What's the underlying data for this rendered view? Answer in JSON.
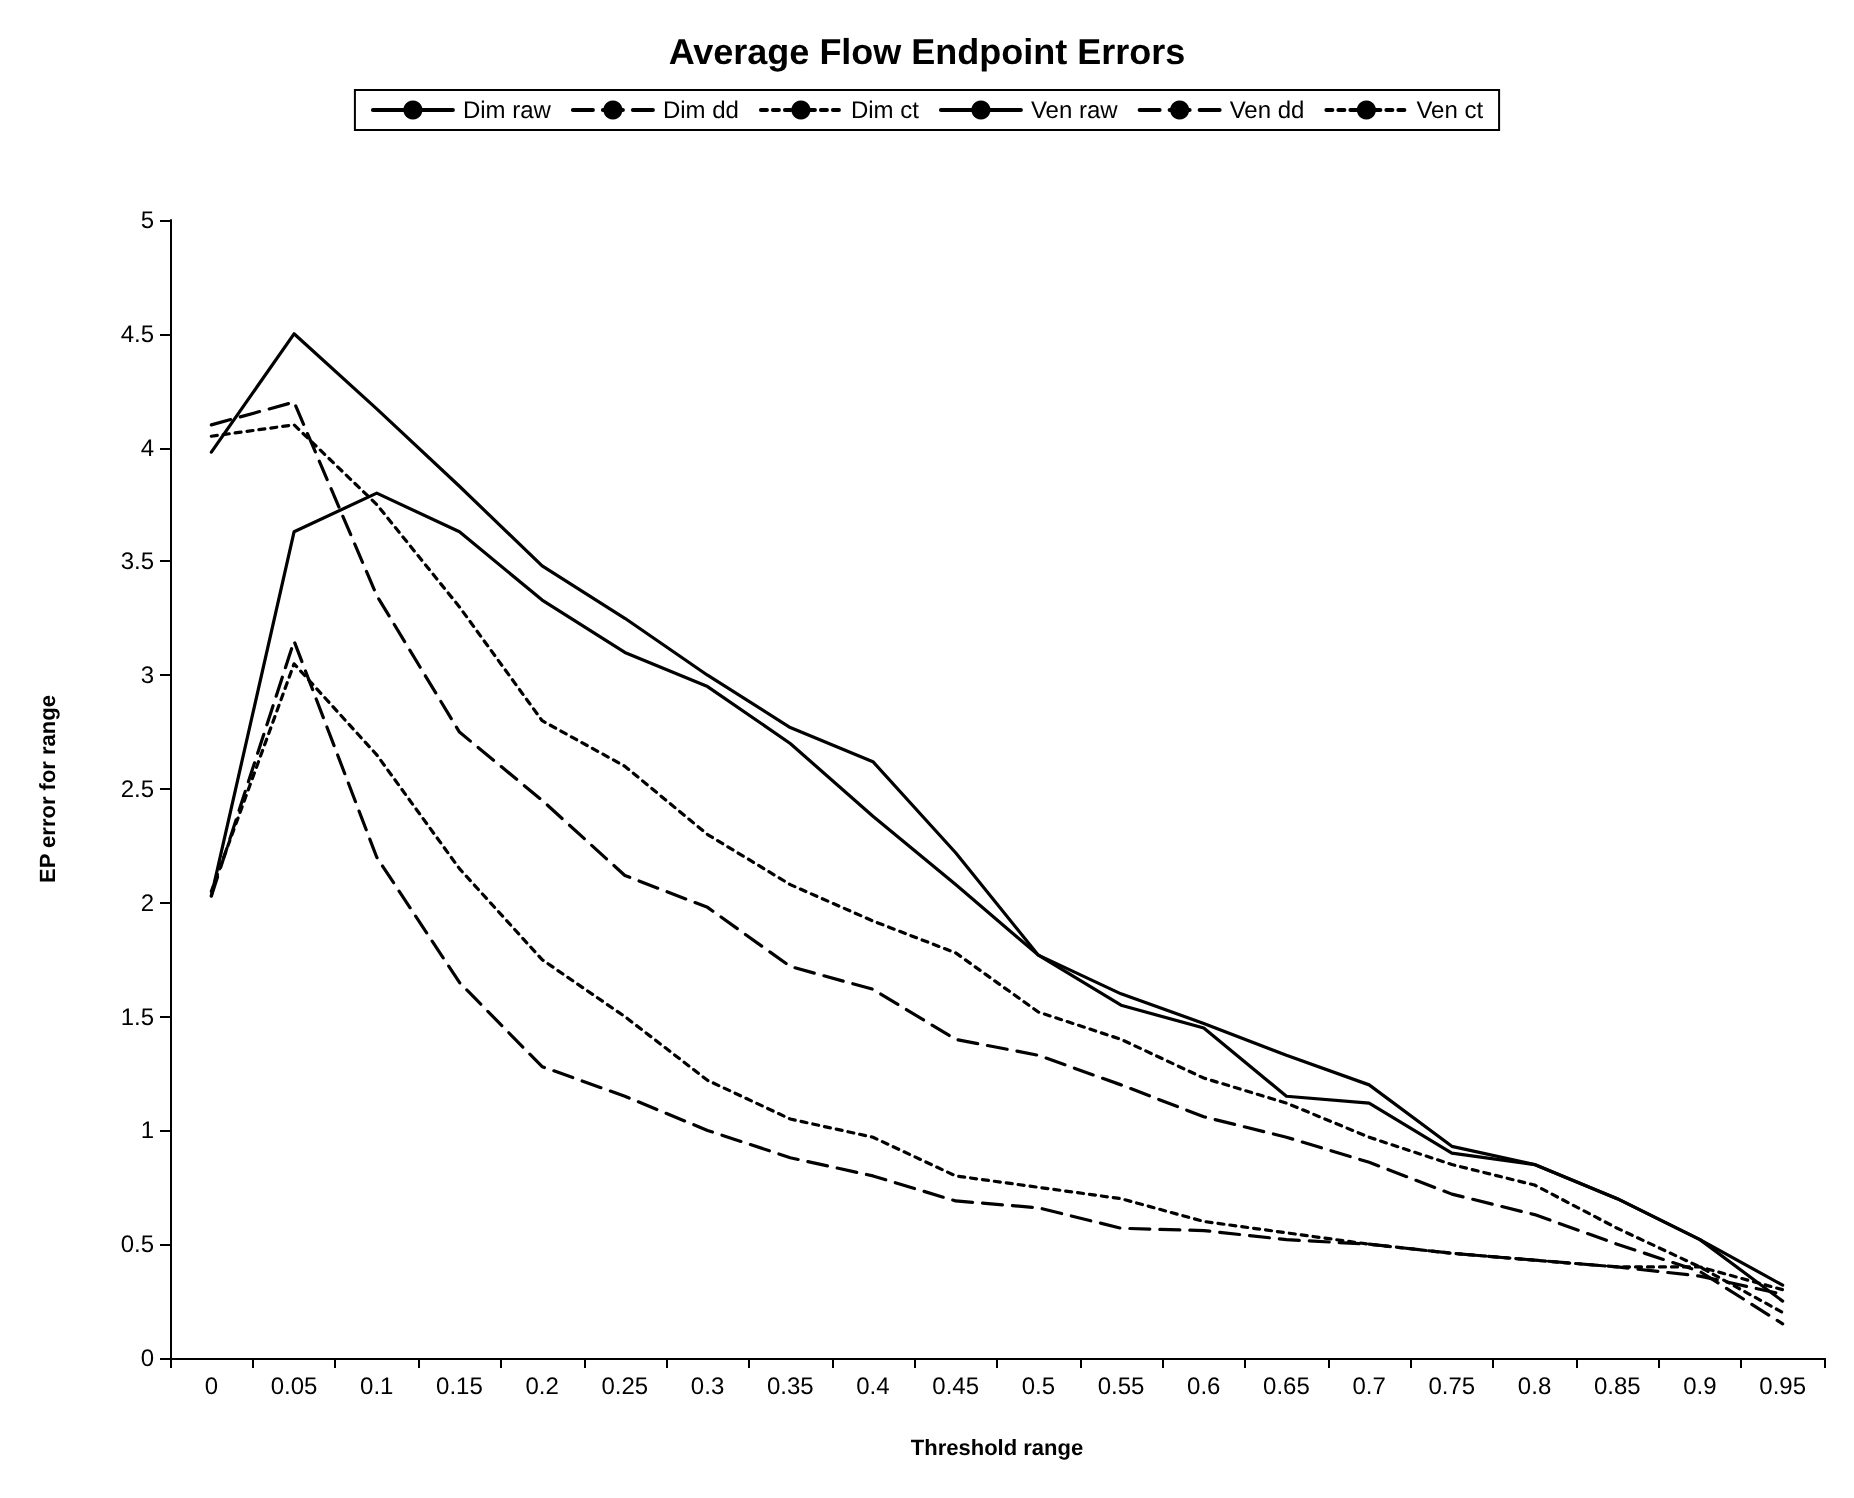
{
  "chart_data": {
    "type": "line",
    "title": "Average Flow Endpoint Errors",
    "xlabel": "Threshold range",
    "ylabel": "EP error for range",
    "categories": [
      "0",
      "0.05",
      "0.1",
      "0.15",
      "0.2",
      "0.25",
      "0.3",
      "0.35",
      "0.4",
      "0.45",
      "0.5",
      "0.55",
      "0.6",
      "0.65",
      "0.7",
      "0.75",
      "0.8",
      "0.85",
      "0.9",
      "0.95"
    ],
    "series": [
      {
        "name": "Dim raw",
        "color": "#000000",
        "line_style": "solid",
        "values": [
          2.03,
          3.63,
          3.8,
          3.63,
          3.33,
          3.1,
          2.95,
          2.7,
          2.38,
          2.08,
          1.77,
          1.55,
          1.45,
          1.15,
          1.12,
          0.9,
          0.85,
          0.7,
          0.52,
          0.32
        ]
      },
      {
        "name": "Dim dd",
        "color": "#000000",
        "line_style": "dashed",
        "values": [
          2.03,
          3.15,
          2.2,
          1.65,
          1.28,
          1.15,
          1.0,
          0.88,
          0.8,
          0.69,
          0.66,
          0.57,
          0.56,
          0.52,
          0.5,
          0.46,
          0.43,
          0.4,
          0.36,
          0.28
        ]
      },
      {
        "name": "Dim ct",
        "color": "#000000",
        "line_style": "dotted",
        "values": [
          2.05,
          3.05,
          2.65,
          2.15,
          1.75,
          1.5,
          1.22,
          1.05,
          0.97,
          0.8,
          0.75,
          0.7,
          0.6,
          0.55,
          0.5,
          0.46,
          0.43,
          0.4,
          0.4,
          0.3
        ]
      },
      {
        "name": "Ven raw",
        "color": "#000000",
        "line_style": "solid",
        "values": [
          3.98,
          4.5,
          4.17,
          3.83,
          3.48,
          3.25,
          3.0,
          2.77,
          2.62,
          2.22,
          1.77,
          1.6,
          1.47,
          1.33,
          1.2,
          0.93,
          0.85,
          0.7,
          0.52,
          0.25
        ]
      },
      {
        "name": "Ven dd",
        "color": "#000000",
        "line_style": "dashed",
        "values": [
          4.1,
          4.2,
          3.35,
          2.75,
          2.45,
          2.12,
          1.98,
          1.72,
          1.62,
          1.4,
          1.33,
          1.2,
          1.06,
          0.97,
          0.86,
          0.72,
          0.63,
          0.5,
          0.38,
          0.15
        ]
      },
      {
        "name": "Ven ct",
        "color": "#000000",
        "line_style": "dotted",
        "values": [
          4.05,
          4.1,
          3.75,
          3.3,
          2.8,
          2.6,
          2.3,
          2.08,
          1.92,
          1.78,
          1.52,
          1.4,
          1.23,
          1.12,
          0.97,
          0.85,
          0.76,
          0.57,
          0.4,
          0.2
        ]
      }
    ],
    "ylim": [
      0,
      5
    ],
    "yticks": [
      0,
      0.5,
      1,
      1.5,
      2,
      2.5,
      3,
      3.5,
      4,
      4.5,
      5
    ],
    "grid": false,
    "legend": "top",
    "marker": "none"
  }
}
